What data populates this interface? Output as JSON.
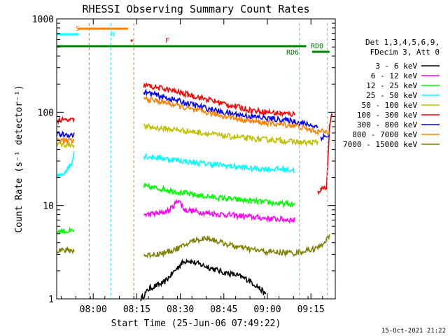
{
  "chart_data": {
    "type": "line",
    "title": "RHESSI Observing Summary Count Rates",
    "xlabel": "Start Time (25-Jun-06 07:49:22)",
    "ylabel": "Count Rate (s⁻¹ detector⁻¹)",
    "yscale": "log",
    "ylim": [
      1,
      1000
    ],
    "xlim_minutes": [
      -2,
      94
    ],
    "x_ticks": [
      {
        "label": "08:00",
        "minutes": 10.6
      },
      {
        "label": "08:15",
        "minutes": 25.6
      },
      {
        "label": "08:30",
        "minutes": 40.6
      },
      {
        "label": "08:45",
        "minutes": 55.6
      },
      {
        "label": "09:00",
        "minutes": 70.6
      },
      {
        "label": "09:15",
        "minutes": 85.6
      }
    ],
    "y_ticks": [
      {
        "label": "1",
        "value": 1
      },
      {
        "label": "10",
        "value": 10
      },
      {
        "label": "100",
        "value": 100
      },
      {
        "label": "1000",
        "value": 1000
      }
    ],
    "legend": {
      "header": [
        "Det 1,3,4,5,6,9,",
        "FDecim 3, Att 0"
      ],
      "placement": "right"
    },
    "flags": [
      {
        "label": "S",
        "color": "#ff8000"
      },
      {
        "label": "N",
        "color": "#00ffff"
      },
      {
        "label": "F",
        "color": "#ff0000"
      },
      {
        "label": "RD0",
        "color": "#008000"
      },
      {
        "label": "RD6",
        "color": "#008000"
      }
    ],
    "series": [
      {
        "name": "3 - 6 keV",
        "color": "#000000",
        "segments": [
          [
            [
              27,
              1
            ],
            [
              30,
              1.3
            ],
            [
              35,
              1.5
            ],
            [
              41,
              2.4
            ],
            [
              43,
              2.6
            ],
            [
              50,
              2.2
            ],
            [
              56,
              1.9
            ],
            [
              60,
              1.8
            ],
            [
              64,
              1.6
            ],
            [
              68,
              1.3
            ],
            [
              70,
              1.1
            ]
          ]
        ]
      },
      {
        "name": "6 - 12 keV",
        "color": "#ff00ff",
        "segments": [
          [
            [
              28,
              8
            ],
            [
              34,
              8.3
            ],
            [
              37,
              9
            ],
            [
              40,
              11.5
            ],
            [
              42,
              9
            ],
            [
              50,
              8.3
            ],
            [
              60,
              7.8
            ],
            [
              70,
              7.3
            ],
            [
              80,
              7
            ]
          ]
        ]
      },
      {
        "name": "12 - 25 keV",
        "color": "#00ff00",
        "segments": [
          [
            [
              -2,
              5.3
            ],
            [
              4,
              5.3
            ]
          ],
          [
            [
              28,
              16
            ],
            [
              35,
              15
            ],
            [
              45,
              13
            ],
            [
              55,
              12
            ],
            [
              65,
              11.2
            ],
            [
              75,
              10.5
            ],
            [
              80,
              10.2
            ]
          ]
        ]
      },
      {
        "name": "25 - 50 keV",
        "color": "#00ffff",
        "segments": [
          [
            [
              -2,
              20
            ],
            [
              1,
              23
            ],
            [
              3,
              28
            ],
            [
              4,
              38
            ]
          ],
          [
            [
              28,
              34
            ],
            [
              35,
              32
            ],
            [
              45,
              29
            ],
            [
              55,
              27
            ],
            [
              65,
              25
            ],
            [
              75,
              24.5
            ],
            [
              80,
              24
            ]
          ]
        ]
      },
      {
        "name": "50 - 100 keV",
        "color": "#c0c000",
        "segments": [
          [
            [
              -2,
              45
            ],
            [
              4,
              45
            ]
          ],
          [
            [
              28,
              70
            ],
            [
              35,
              67
            ],
            [
              45,
              62
            ],
            [
              55,
              56
            ],
            [
              65,
              52
            ],
            [
              75,
              50
            ],
            [
              80,
              48
            ],
            [
              85,
              47
            ],
            [
              88,
              48
            ]
          ]
        ]
      },
      {
        "name": "100 - 300 keV",
        "color": "#ff0000",
        "segments": [
          [
            [
              -2,
              82
            ],
            [
              4,
              82
            ]
          ],
          [
            [
              28,
              195
            ],
            [
              35,
              178
            ],
            [
              45,
              150
            ],
            [
              55,
              125
            ],
            [
              65,
              105
            ],
            [
              75,
              97
            ],
            [
              80,
              95
            ]
          ],
          [
            [
              88,
              14
            ],
            [
              89,
              15
            ],
            [
              91,
              16
            ],
            [
              92,
              70
            ],
            [
              93,
              97
            ]
          ]
        ]
      },
      {
        "name": "300 - 800 keV",
        "color": "#0000ff",
        "segments": [
          [
            [
              -2,
              58
            ],
            [
              4,
              57
            ]
          ],
          [
            [
              28,
              165
            ],
            [
              35,
              145
            ],
            [
              45,
              120
            ],
            [
              55,
              100
            ],
            [
              65,
              90
            ],
            [
              75,
              83
            ],
            [
              80,
              80
            ],
            [
              85,
              73
            ],
            [
              88,
              70
            ]
          ],
          [
            [
              89,
              54
            ],
            [
              92,
              56
            ]
          ]
        ]
      },
      {
        "name": "800 - 7000 keV",
        "color": "#ff8000",
        "segments": [
          [
            [
              -2,
              50
            ],
            [
              4,
              49
            ]
          ],
          [
            [
              28,
              140
            ],
            [
              35,
              128
            ],
            [
              45,
              106
            ],
            [
              55,
              92
            ],
            [
              65,
              80
            ],
            [
              75,
              74
            ],
            [
              80,
              72
            ],
            [
              85,
              65
            ],
            [
              88,
              62
            ],
            [
              92,
              62
            ]
          ]
        ]
      },
      {
        "name": "7000 - 15000 keV",
        "color": "#808000",
        "segments": [
          [
            [
              -2,
              3.3
            ],
            [
              4,
              3.3
            ]
          ],
          [
            [
              28,
              2.9
            ],
            [
              35,
              3.1
            ],
            [
              41,
              3.6
            ],
            [
              45,
              4.2
            ],
            [
              50,
              4.5
            ],
            [
              55,
              4
            ],
            [
              60,
              3.6
            ],
            [
              70,
              3.2
            ],
            [
              80,
              3.1
            ],
            [
              88,
              3.5
            ],
            [
              92,
              4.6
            ]
          ]
        ]
      }
    ]
  },
  "footer": {
    "date": "15-Oct-2021 21:22"
  }
}
